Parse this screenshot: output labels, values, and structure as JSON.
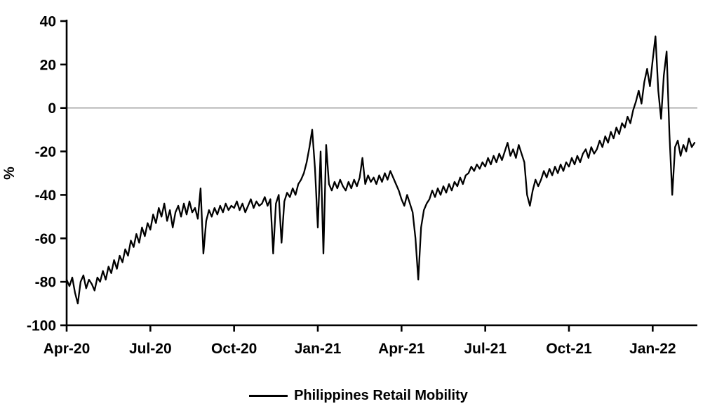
{
  "chart_data": {
    "type": "line",
    "title": "",
    "xlabel": "",
    "ylabel": "%",
    "ylim": [
      -100,
      40
    ],
    "yticks": [
      40,
      20,
      0,
      -20,
      -40,
      -60,
      -80,
      -100
    ],
    "xticks": [
      "Apr-20",
      "Jul-20",
      "Oct-20",
      "Jan-21",
      "Apr-21",
      "Jul-21",
      "Oct-21",
      "Jan-22"
    ],
    "xtick_indices": [
      0,
      30,
      60,
      90,
      120,
      150,
      180,
      210
    ],
    "gridlines": [
      0
    ],
    "grid": "zero-line-only",
    "legend_position": "bottom",
    "line_color": "#000000",
    "gridline_color": "#8c8c8c",
    "series": [
      {
        "name": "Philippines Retail Mobility",
        "color": "#000000",
        "values": [
          -79,
          -82,
          -78,
          -85,
          -90,
          -80,
          -77,
          -83,
          -79,
          -81,
          -84,
          -78,
          -80,
          -75,
          -79,
          -73,
          -76,
          -70,
          -74,
          -68,
          -71,
          -65,
          -68,
          -61,
          -64,
          -58,
          -62,
          -55,
          -59,
          -53,
          -56,
          -49,
          -53,
          -46,
          -50,
          -44,
          -52,
          -47,
          -55,
          -48,
          -45,
          -50,
          -44,
          -49,
          -43,
          -48,
          -46,
          -51,
          -37,
          -67,
          -52,
          -47,
          -50,
          -46,
          -49,
          -45,
          -48,
          -44,
          -47,
          -45,
          -46,
          -43,
          -47,
          -44,
          -48,
          -45,
          -42,
          -46,
          -43,
          -45,
          -44,
          -41,
          -45,
          -42,
          -67,
          -44,
          -40,
          -62,
          -43,
          -39,
          -41,
          -37,
          -40,
          -35,
          -33,
          -30,
          -25,
          -18,
          -10,
          -28,
          -55,
          -20,
          -67,
          -17,
          -35,
          -38,
          -34,
          -37,
          -33,
          -36,
          -38,
          -34,
          -37,
          -33,
          -36,
          -32,
          -23,
          -35,
          -31,
          -34,
          -32,
          -35,
          -31,
          -34,
          -30,
          -33,
          -29,
          -32,
          -35,
          -38,
          -42,
          -45,
          -40,
          -44,
          -48,
          -60,
          -79,
          -55,
          -47,
          -44,
          -42,
          -38,
          -41,
          -37,
          -40,
          -36,
          -39,
          -35,
          -38,
          -34,
          -36,
          -32,
          -35,
          -31,
          -30,
          -27,
          -29,
          -26,
          -28,
          -25,
          -27,
          -23,
          -26,
          -22,
          -25,
          -21,
          -24,
          -20,
          -16,
          -22,
          -19,
          -23,
          -17,
          -21,
          -25,
          -40,
          -45,
          -38,
          -33,
          -36,
          -33,
          -29,
          -32,
          -28,
          -31,
          -27,
          -30,
          -26,
          -29,
          -25,
          -27,
          -23,
          -26,
          -22,
          -25,
          -21,
          -19,
          -23,
          -18,
          -21,
          -19,
          -15,
          -18,
          -13,
          -16,
          -11,
          -14,
          -9,
          -12,
          -7,
          -9,
          -4,
          -7,
          -1,
          3,
          8,
          2,
          12,
          18,
          10,
          22,
          33,
          8,
          -5,
          15,
          26,
          -12,
          -40,
          -18,
          -15,
          -22,
          -17,
          -20,
          -14,
          -18,
          -16
        ]
      }
    ]
  }
}
